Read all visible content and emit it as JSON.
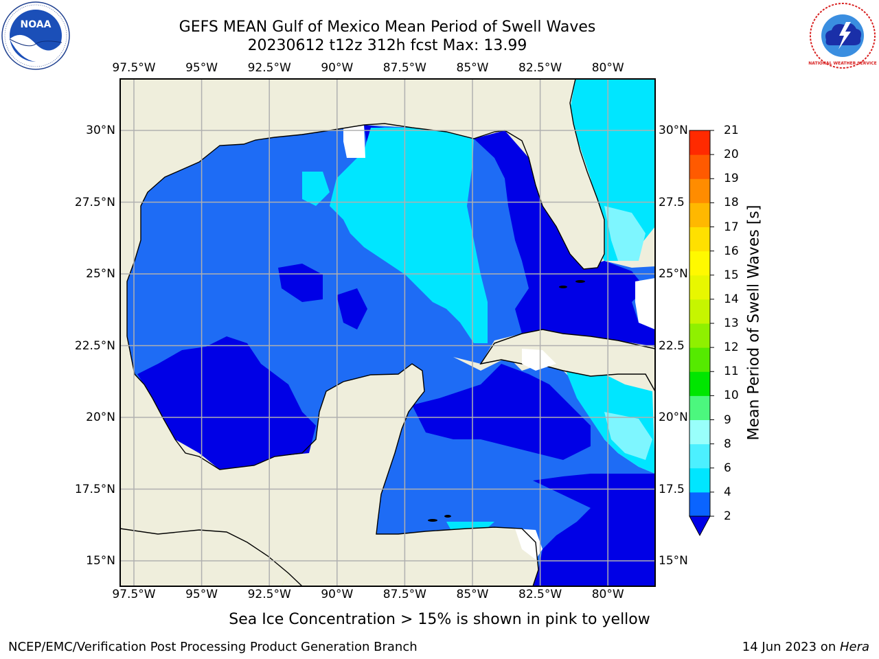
{
  "header": {
    "title_line1": "GEFS MEAN Gulf of Mexico Mean Period of Swell Waves",
    "title_line2": "20230612 t12z 312h fcst   Max: 13.99"
  },
  "map": {
    "lon_ticks": [
      "97.5°W",
      "95°W",
      "92.5°W",
      "90°W",
      "87.5°W",
      "85°W",
      "82.5°W",
      "80°W"
    ],
    "lat_ticks_left": [
      "30°N",
      "27.5°N",
      "25°N",
      "22.5°N",
      "20°N",
      "17.5°N",
      "15°N"
    ],
    "lat_ticks_right": [
      "30°N",
      "27.5",
      "25°N",
      "22.5",
      "20°N",
      "17.5",
      "15°N"
    ],
    "land_color": "#efeedc",
    "grid_color": "#b0b0b0"
  },
  "colorbar": {
    "label": "Mean Period of Swell Waves [s]",
    "levels": [
      "2",
      "4",
      "6",
      "8",
      "9",
      "10",
      "11",
      "12",
      "13",
      "14",
      "15",
      "16",
      "17",
      "18",
      "19",
      "20",
      "21"
    ],
    "colors": [
      "#0a64ff",
      "#00e6ff",
      "#4cf0ff",
      "#99fffb",
      "#4cf77e",
      "#00e600",
      "#55ea00",
      "#8ff000",
      "#c6f500",
      "#e8f700",
      "#fff900",
      "#ffe000",
      "#ffb800",
      "#ff8c00",
      "#ff5a00",
      "#ff2a00",
      "#ff0000"
    ],
    "extend_color": "#0000e6"
  },
  "note": "Sea Ice Concentration > 15% is shown in pink to yellow",
  "footer": {
    "left": "NCEP/EMC/Verification Post Processing Product Generation Branch",
    "right_prefix": "14 Jun 2023 on ",
    "right_host": "Hera"
  },
  "logos": {
    "noaa_text": "NOAA",
    "nws_text": "NATIONAL WEATHER SERVICE"
  }
}
